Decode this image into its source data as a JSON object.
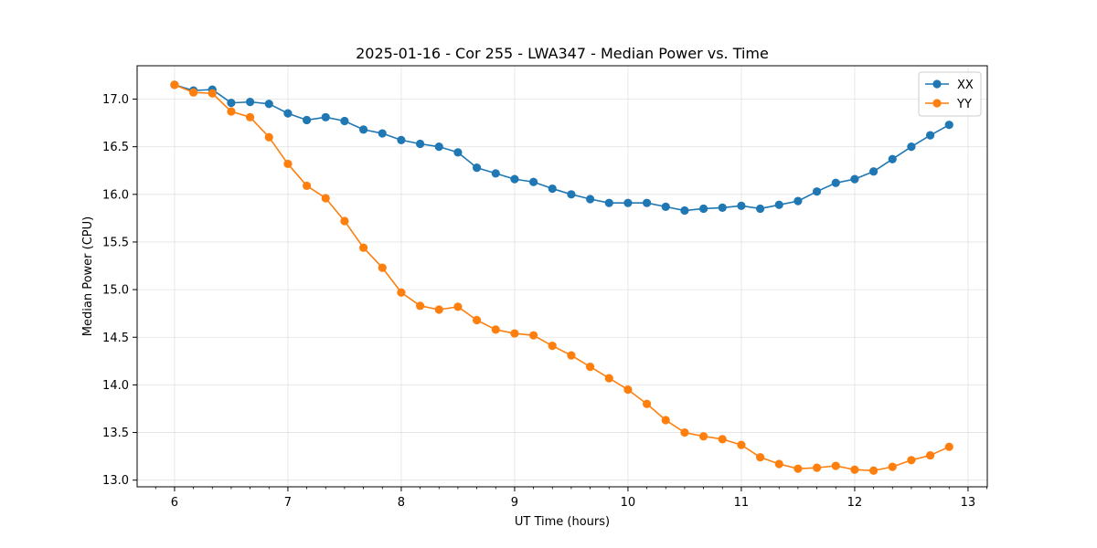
{
  "chart_data": {
    "type": "line",
    "title": "2025-01-16 - Cor 255 - LWA347 - Median Power vs. Time",
    "xlabel": "UT Time (hours)",
    "ylabel": "Median Power (CPU)",
    "xlim": [
      5.67,
      13.17
    ],
    "ylim": [
      12.93,
      17.35
    ],
    "xticks": [
      6,
      7,
      8,
      9,
      10,
      11,
      12,
      13
    ],
    "xtick_labels": [
      "6",
      "7",
      "8",
      "9",
      "10",
      "11",
      "12",
      "13"
    ],
    "yticks": [
      13.0,
      13.5,
      14.0,
      14.5,
      15.0,
      15.5,
      16.0,
      16.5,
      17.0
    ],
    "ytick_labels": [
      "13.0",
      "13.5",
      "14.0",
      "14.5",
      "15.0",
      "15.5",
      "16.0",
      "16.5",
      "17.0"
    ],
    "grid": true,
    "legend_position": "top-right",
    "x": [
      6.0,
      6.1667,
      6.3333,
      6.5,
      6.6667,
      6.8333,
      7.0,
      7.1667,
      7.3333,
      7.5,
      7.6667,
      7.8333,
      8.0,
      8.1667,
      8.3333,
      8.5,
      8.6667,
      8.8333,
      9.0,
      9.1667,
      9.3333,
      9.5,
      9.6667,
      9.8333,
      10.0,
      10.1667,
      10.3333,
      10.5,
      10.6667,
      10.8333,
      11.0,
      11.1667,
      11.3333,
      11.5,
      11.6667,
      11.8333,
      12.0,
      12.1667,
      12.3333,
      12.5,
      12.6667,
      12.8333
    ],
    "series": [
      {
        "name": "XX",
        "color": "#1f77b4",
        "values": [
          17.15,
          17.09,
          17.1,
          16.96,
          16.97,
          16.95,
          16.85,
          16.78,
          16.81,
          16.77,
          16.68,
          16.64,
          16.57,
          16.53,
          16.5,
          16.44,
          16.28,
          16.22,
          16.16,
          16.13,
          16.06,
          16.0,
          15.95,
          15.91,
          15.91,
          15.91,
          15.87,
          15.83,
          15.85,
          15.86,
          15.88,
          15.85,
          15.89,
          15.93,
          16.03,
          16.12,
          16.16,
          16.24,
          16.37,
          16.5,
          16.62,
          16.73
        ]
      },
      {
        "name": "YY",
        "color": "#ff7f0e",
        "values": [
          17.15,
          17.07,
          17.06,
          16.87,
          16.81,
          16.6,
          16.32,
          16.09,
          15.96,
          15.72,
          15.44,
          15.23,
          14.97,
          14.83,
          14.79,
          14.82,
          14.68,
          14.58,
          14.54,
          14.52,
          14.41,
          14.31,
          14.19,
          14.07,
          13.95,
          13.8,
          13.63,
          13.5,
          13.46,
          13.43,
          13.37,
          13.24,
          13.17,
          13.12,
          13.13,
          13.15,
          13.11,
          13.1,
          13.14,
          13.21,
          13.26,
          13.35
        ]
      }
    ]
  }
}
